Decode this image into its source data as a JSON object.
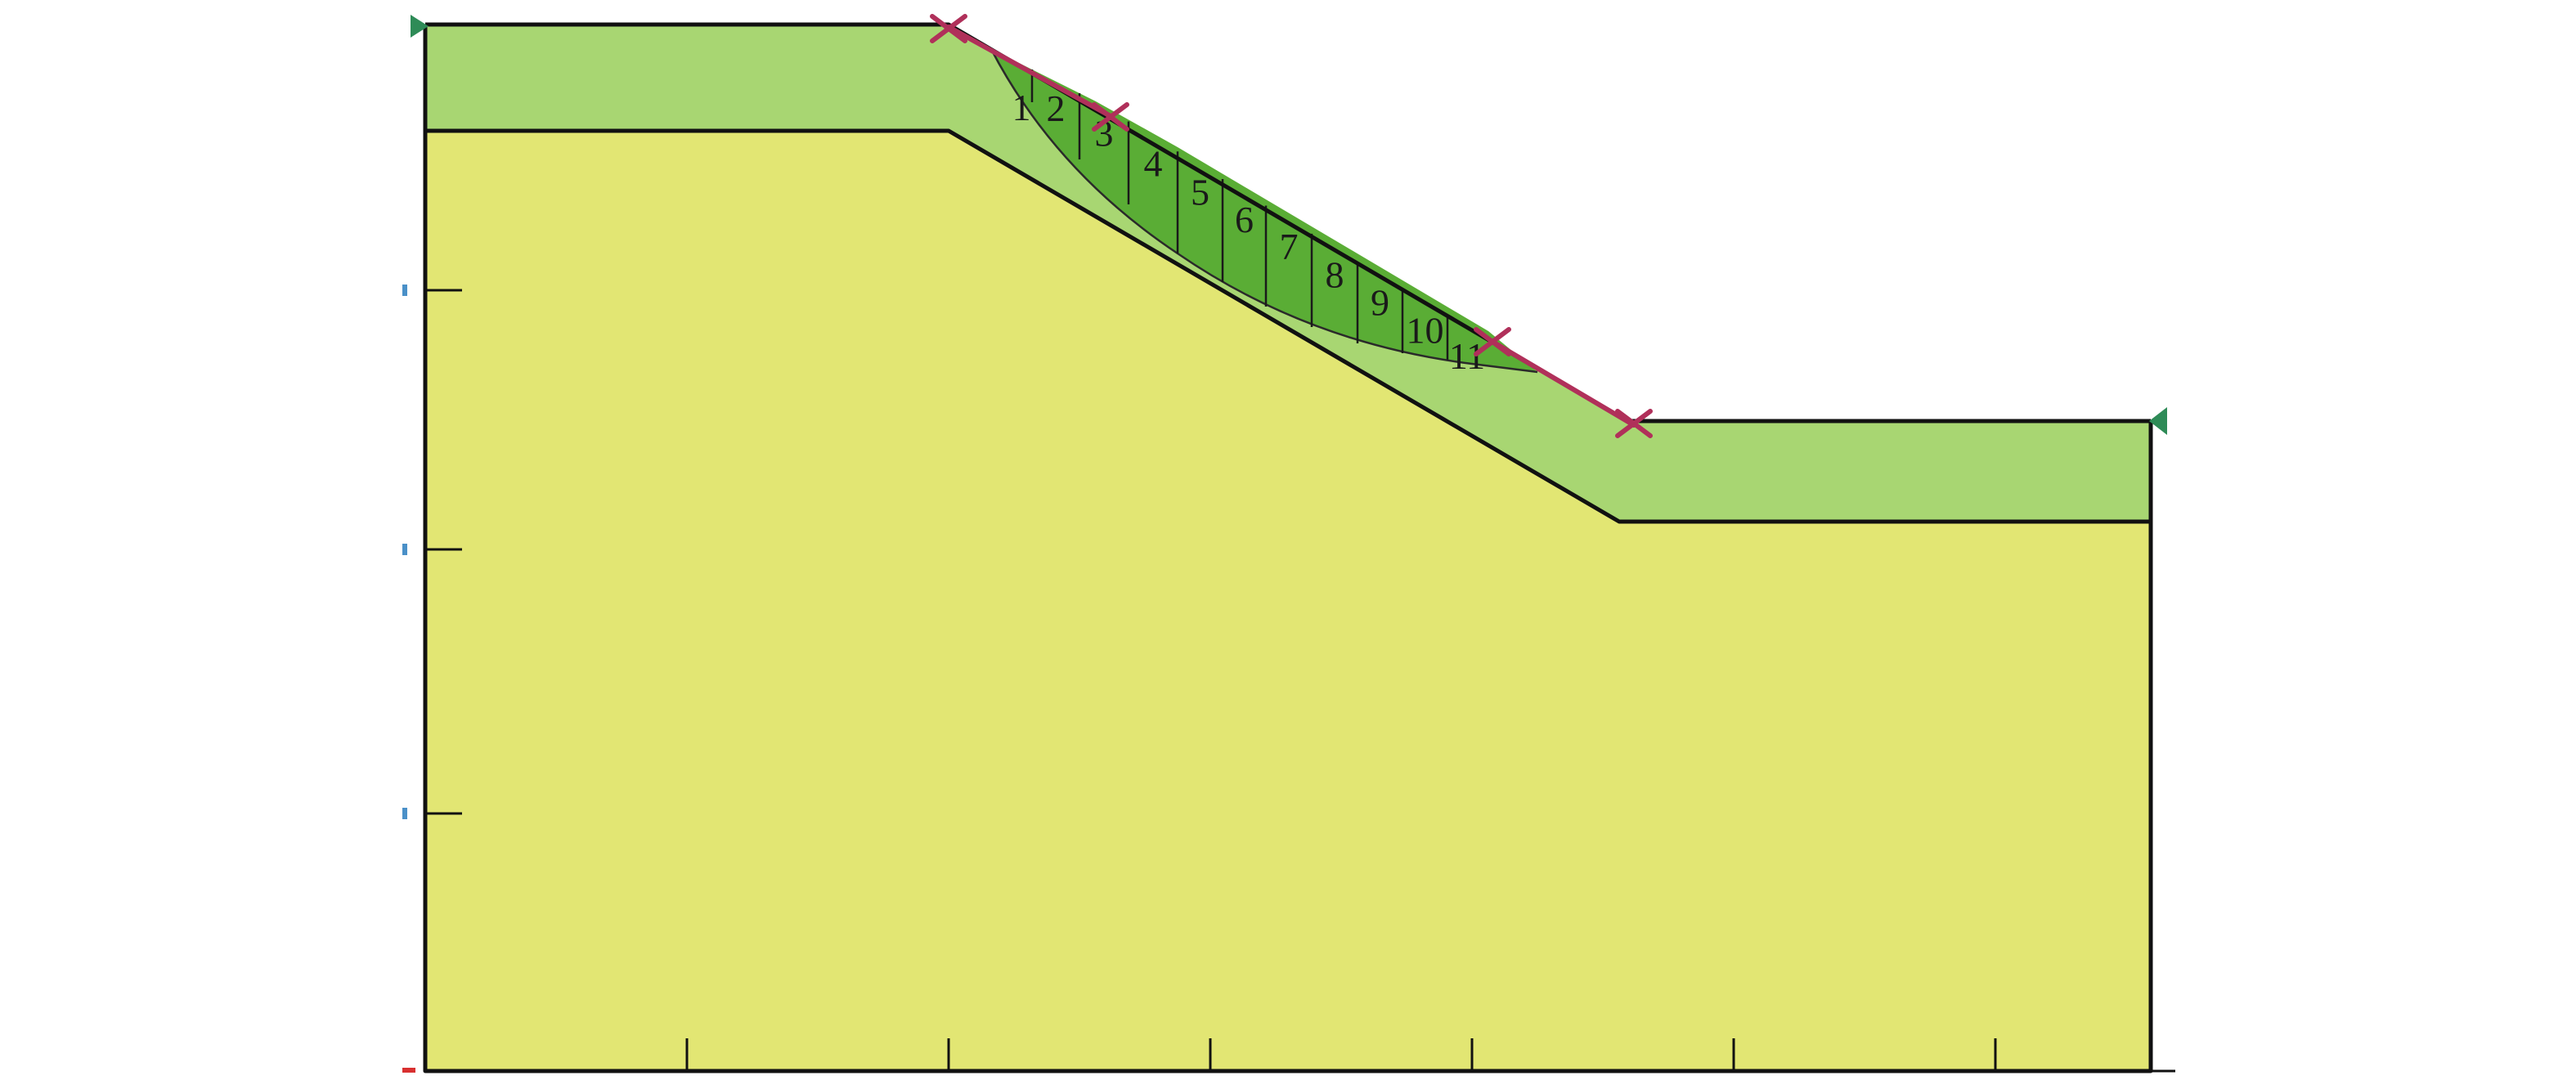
{
  "materials": {
    "upper_layer_color": "#a8d672",
    "lower_layer_color": "#e2e673",
    "sliding_mass_color": "#5aad35",
    "slip_marker_color": "#b0305a",
    "boundary_marker_color": "#2e8b57"
  },
  "slices": {
    "labels": [
      "1",
      "2",
      "3",
      "4",
      "5",
      "6",
      "7",
      "8",
      "9",
      "10",
      "11"
    ]
  },
  "icons": {
    "left_boundary": "triangle-right-icon",
    "right_boundary": "triangle-left-icon",
    "slip_limit": "cross-icon"
  }
}
